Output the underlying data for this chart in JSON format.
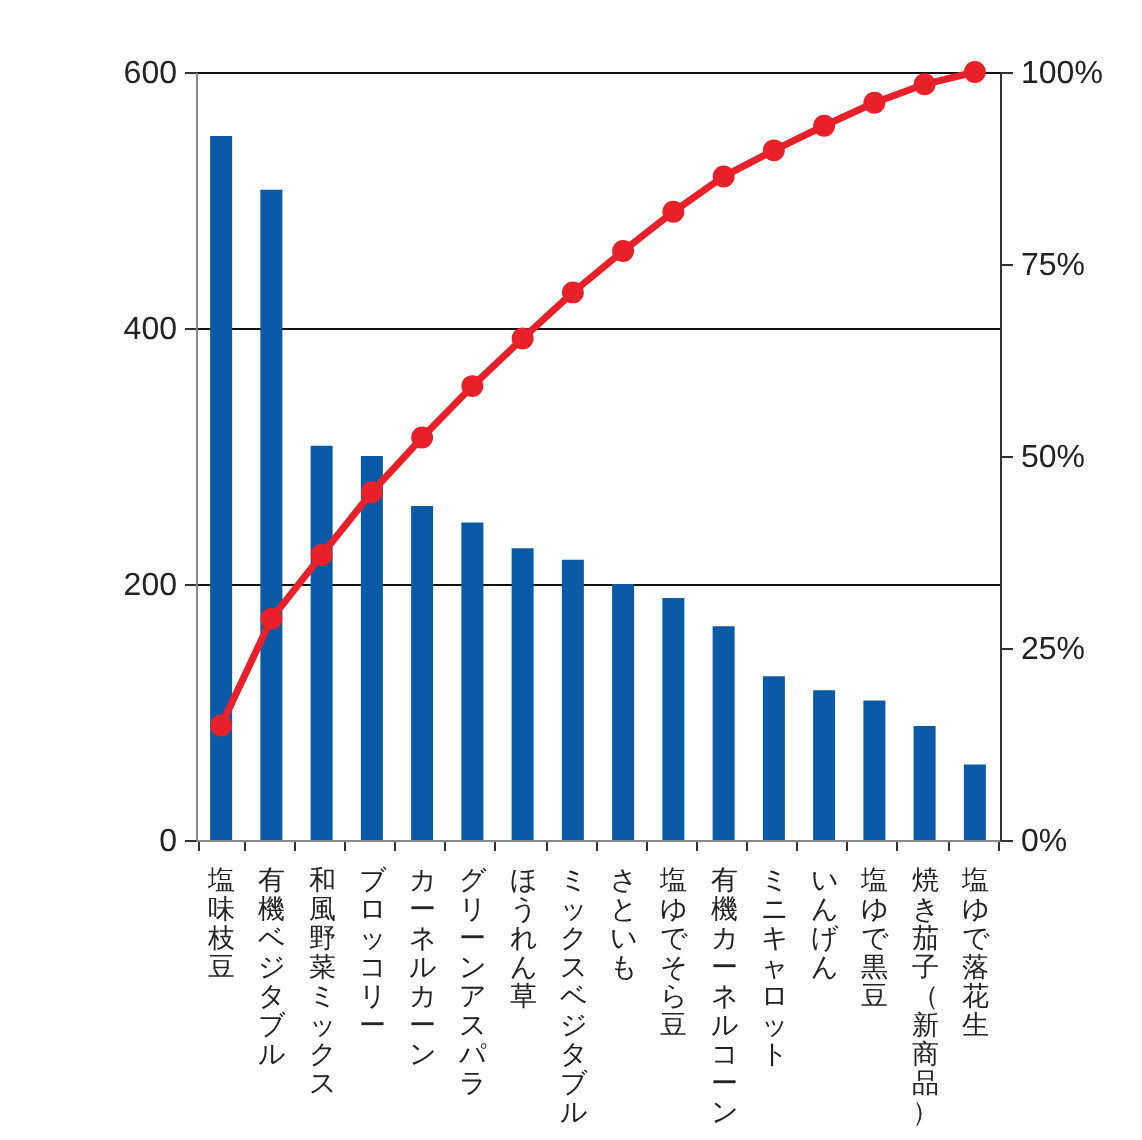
{
  "chart_data": {
    "type": "bar",
    "categories": [
      "塩味枝豆",
      "有機ベジタブル",
      "和風野菜ミックス",
      "ブロッコリー",
      "カーネルカーン",
      "グリーンアスパラ",
      "ほうれん草",
      "ミックスベジタブル",
      "さといも",
      "塩ゆでそら豆",
      "有機カーネルコーン",
      "ミニキャロット",
      "いんげん",
      "塩ゆで黒豆",
      "焼き茄子（新商品）",
      "塩ゆで落花生"
    ],
    "series": [
      {
        "color": "#0a5aa8",
        "values": [
          550,
          508,
          308,
          300,
          261,
          248,
          228,
          219,
          200,
          189,
          167,
          128,
          117,
          109,
          89,
          59
        ]
      },
      {
        "type": "line",
        "axis": "y2",
        "color": "#e8202a",
        "values": [
          14.9,
          28.8,
          37.1,
          45.3,
          52.4,
          59.1,
          65.3,
          71.3,
          76.7,
          81.8,
          86.4,
          89.8,
          93.0,
          96.0,
          98.4,
          100
        ]
      }
    ],
    "ylim": [
      0,
      600
    ],
    "yticks": [
      0,
      200,
      400,
      600
    ],
    "y2lim": [
      0,
      100
    ],
    "y2ticks": [
      {
        "value": 0,
        "label": "0%"
      },
      {
        "value": 25,
        "label": "25%"
      },
      {
        "value": 50,
        "label": "50%"
      },
      {
        "value": 75,
        "label": "75%"
      },
      {
        "value": 100,
        "label": "100%"
      }
    ],
    "grid": "y",
    "marker": "circle",
    "line_style": "solid"
  }
}
